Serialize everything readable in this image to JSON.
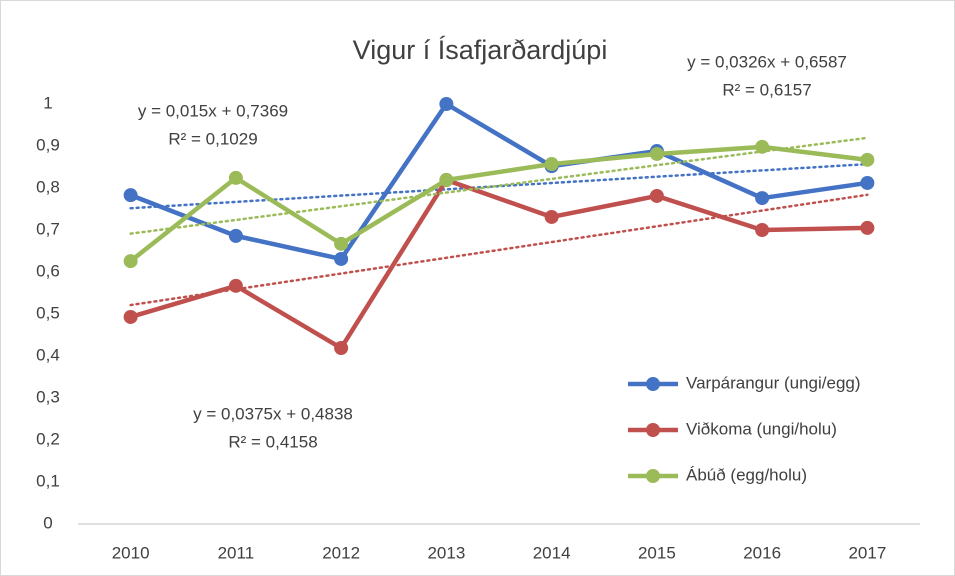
{
  "chart_data": {
    "type": "line",
    "title": "Vigur í Ísafjarðardjúpi",
    "categories": [
      "2010",
      "2011",
      "2012",
      "2013",
      "2014",
      "2015",
      "2016",
      "2017"
    ],
    "ylim": [
      0,
      1
    ],
    "yticks": [
      0,
      {
        "value": 0.1,
        "label": "0,1"
      },
      {
        "value": 0.2,
        "label": "0,2"
      },
      {
        "value": 0.3,
        "label": "0,3"
      },
      {
        "value": 0.4,
        "label": "0,4"
      },
      {
        "value": 0.5,
        "label": "0,5"
      },
      {
        "value": 0.6,
        "label": "0,6"
      },
      {
        "value": 0.7,
        "label": "0,7"
      },
      {
        "value": 0.8,
        "label": "0,8"
      },
      {
        "value": 0.9,
        "label": "0,9"
      },
      1
    ],
    "grid": false,
    "legend": "right",
    "series": [
      {
        "name": "Varpárangur (ungi/egg)",
        "color": "#4472c4",
        "values": [
          0.783,
          0.686,
          0.631,
          1.0,
          0.852,
          0.888,
          0.776,
          0.812
        ],
        "trendline": {
          "slope": 0.015,
          "intercept": 0.7369,
          "equation": "y = 0,015x + 0,7369",
          "r2": "R² = 0,1029"
        }
      },
      {
        "name": "Viðkoma (ungi/holu)",
        "color": "#c0504d",
        "values": [
          0.493,
          0.567,
          0.419,
          0.819,
          0.731,
          0.781,
          0.7,
          0.705
        ],
        "trendline": {
          "slope": 0.0375,
          "intercept": 0.4838,
          "equation": "y = 0,0375x + 0,4838",
          "r2": "R² = 0,4158"
        }
      },
      {
        "name": "Ábúð (egg/holu)",
        "color": "#9bbb59",
        "values": [
          0.626,
          0.824,
          0.667,
          0.819,
          0.857,
          0.881,
          0.898,
          0.867
        ],
        "trendline": {
          "slope": 0.0326,
          "intercept": 0.6587,
          "equation": "y = 0,0326x + 0,6587",
          "r2": "R² = 0,6157"
        }
      }
    ]
  }
}
